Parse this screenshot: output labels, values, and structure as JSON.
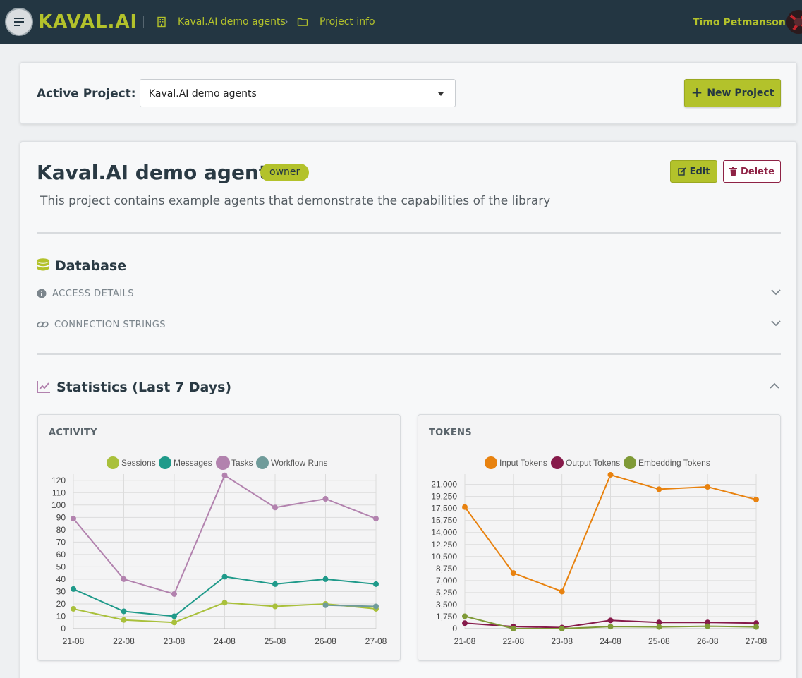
{
  "header": {
    "brand": "KAVAL.AI",
    "breadcrumbs": [
      {
        "label": "Kaval.AI demo agents",
        "icon": "building-icon"
      },
      {
        "label": "Project info",
        "icon": "folder-icon"
      }
    ],
    "user_name": "Timo Petmanson"
  },
  "project_bar": {
    "label": "Active Project:",
    "selected_project": "Kaval.AI demo agents",
    "new_button": "New Project"
  },
  "project": {
    "title": "Kaval.AI demo agents",
    "role_badge": "owner",
    "edit_label": "Edit",
    "delete_label": "Delete",
    "description": "This project contains example agents that demonstrate the capabilities of the library"
  },
  "database": {
    "title": "Database",
    "access_details": "ACCESS DETAILS",
    "connection_strings": "CONNECTION STRINGS"
  },
  "statistics": {
    "title": "Statistics (Last 7 Days)"
  },
  "colors": {
    "accent": "#b3c22b",
    "header_bg": "#233642",
    "danger": "#8e2245"
  },
  "chart_data": [
    {
      "type": "line",
      "title": "ACTIVITY",
      "categories": [
        "21-08",
        "22-08",
        "23-08",
        "24-08",
        "25-08",
        "26-08",
        "27-08"
      ],
      "yticks": [
        0,
        10,
        20,
        30,
        40,
        50,
        60,
        70,
        80,
        90,
        100,
        110,
        120
      ],
      "ylim": [
        0,
        125
      ],
      "grid": true,
      "legend_position": "top",
      "series": [
        {
          "name": "Sessions",
          "color": "#a9c03b",
          "values": [
            16,
            7,
            5,
            21,
            18,
            20,
            16
          ]
        },
        {
          "name": "Messages",
          "color": "#1f9a8a",
          "values": [
            32,
            14,
            10,
            42,
            36,
            40,
            36
          ]
        },
        {
          "name": "Tasks",
          "color": "#b282ae",
          "values": [
            89,
            40,
            28,
            124,
            98,
            105,
            89
          ]
        },
        {
          "name": "Workflow Runs",
          "color": "#6f9b9a",
          "values": [
            null,
            null,
            null,
            null,
            null,
            19,
            18
          ]
        }
      ]
    },
    {
      "type": "line",
      "title": "TOKENS",
      "categories": [
        "21-08",
        "22-08",
        "23-08",
        "24-08",
        "25-08",
        "26-08",
        "27-08"
      ],
      "yticks": [
        0,
        1750,
        3500,
        5250,
        7000,
        8750,
        10500,
        12250,
        14000,
        15750,
        17500,
        19250,
        21000
      ],
      "ytick_labels": [
        "0",
        "1,750",
        "3,500",
        "5,250",
        "7,000",
        "8,750",
        "10,500",
        "12,250",
        "14,000",
        "15,750",
        "17,500",
        "19,250",
        "21,000"
      ],
      "ylim": [
        0,
        22500
      ],
      "grid": true,
      "legend_position": "top",
      "series": [
        {
          "name": "Input Tokens",
          "color": "#e8820f",
          "values": [
            17700,
            8100,
            5400,
            22400,
            20300,
            20650,
            18800
          ]
        },
        {
          "name": "Output Tokens",
          "color": "#861a4a",
          "values": [
            800,
            300,
            150,
            1200,
            900,
            900,
            800
          ]
        },
        {
          "name": "Embedding Tokens",
          "color": "#7f9a37",
          "values": [
            1800,
            0,
            0,
            300,
            250,
            350,
            250
          ]
        }
      ]
    }
  ]
}
